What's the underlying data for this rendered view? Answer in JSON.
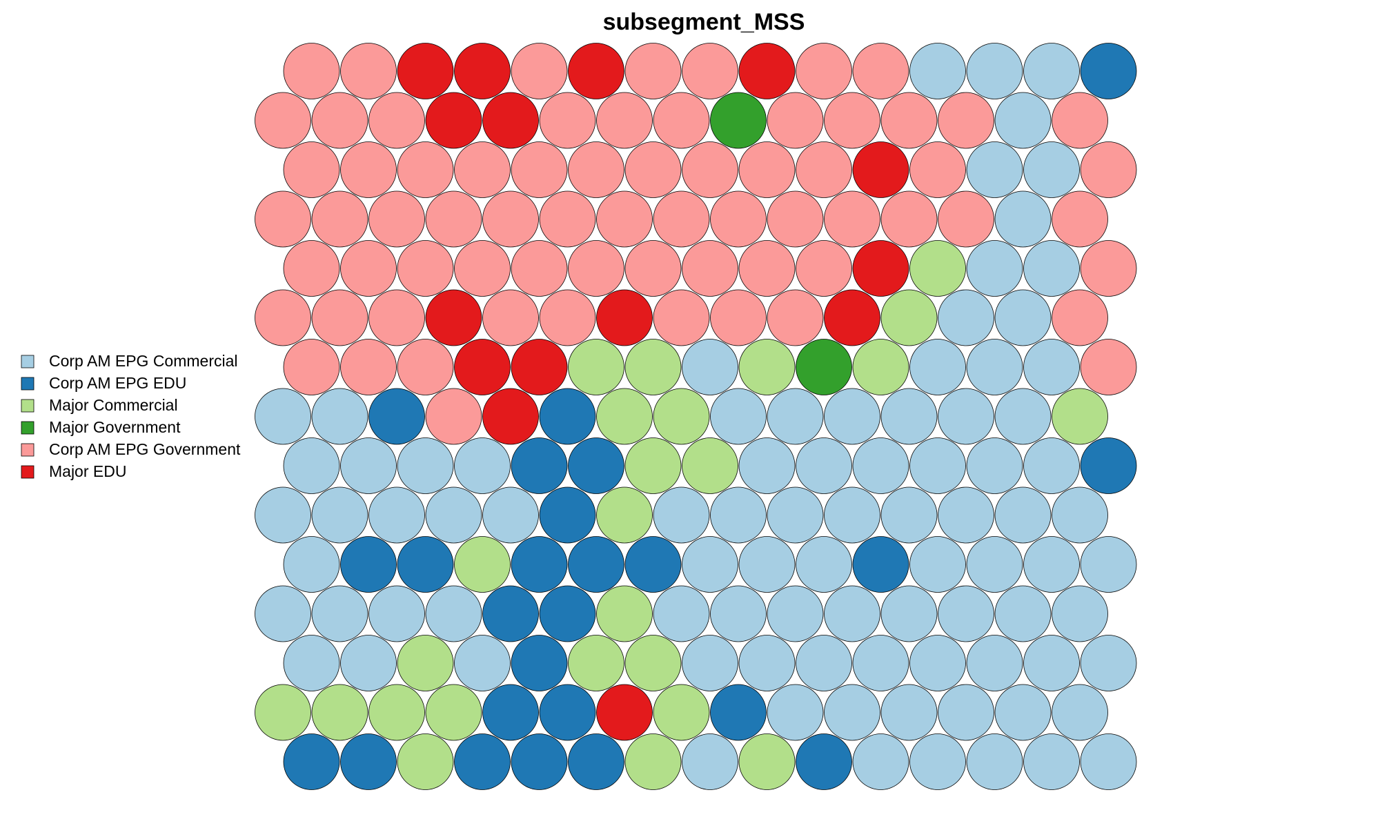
{
  "chart_data": {
    "type": "heatmap",
    "subtype": "som-hexagonal-map",
    "title": "subsegment_MSS",
    "grid": false,
    "legend_position": "left",
    "legend": [
      {
        "name": "Corp AM EPG Commercial",
        "color": "#A6CEE3"
      },
      {
        "name": "Corp AM EPG EDU",
        "color": "#1F78B4"
      },
      {
        "name": "Major Commercial",
        "color": "#B2DF8A"
      },
      {
        "name": "Major Government",
        "color": "#33A02C"
      },
      {
        "name": "Corp AM EPG Government",
        "color": "#FB9A99"
      },
      {
        "name": "Major EDU",
        "color": "#E31A1C"
      }
    ],
    "columns": 15,
    "rows_top_to_bottom": [
      [
        "Corp AM EPG Government",
        "Corp AM EPG Government",
        "Major EDU",
        "Major EDU",
        "Corp AM EPG Government",
        "Major EDU",
        "Corp AM EPG Government",
        "Corp AM EPG Government",
        "Major EDU",
        "Corp AM EPG Government",
        "Corp AM EPG Government",
        "Corp AM EPG Commercial",
        "Corp AM EPG Commercial",
        "Corp AM EPG Commercial",
        "Corp AM EPG EDU"
      ],
      [
        "Corp AM EPG Government",
        "Corp AM EPG Government",
        "Corp AM EPG Government",
        "Major EDU",
        "Major EDU",
        "Corp AM EPG Government",
        "Corp AM EPG Government",
        "Corp AM EPG Government",
        "Major Government",
        "Corp AM EPG Government",
        "Corp AM EPG Government",
        "Corp AM EPG Government",
        "Corp AM EPG Government",
        "Corp AM EPG Commercial",
        "Corp AM EPG Government"
      ],
      [
        "Corp AM EPG Government",
        "Corp AM EPG Government",
        "Corp AM EPG Government",
        "Corp AM EPG Government",
        "Corp AM EPG Government",
        "Corp AM EPG Government",
        "Corp AM EPG Government",
        "Corp AM EPG Government",
        "Corp AM EPG Government",
        "Corp AM EPG Government",
        "Major EDU",
        "Corp AM EPG Government",
        "Corp AM EPG Commercial",
        "Corp AM EPG Commercial",
        "Corp AM EPG Government"
      ],
      [
        "Corp AM EPG Government",
        "Corp AM EPG Government",
        "Corp AM EPG Government",
        "Corp AM EPG Government",
        "Corp AM EPG Government",
        "Corp AM EPG Government",
        "Corp AM EPG Government",
        "Corp AM EPG Government",
        "Corp AM EPG Government",
        "Corp AM EPG Government",
        "Corp AM EPG Government",
        "Corp AM EPG Government",
        "Corp AM EPG Government",
        "Corp AM EPG Commercial",
        "Corp AM EPG Government"
      ],
      [
        "Corp AM EPG Government",
        "Corp AM EPG Government",
        "Corp AM EPG Government",
        "Corp AM EPG Government",
        "Corp AM EPG Government",
        "Corp AM EPG Government",
        "Corp AM EPG Government",
        "Corp AM EPG Government",
        "Corp AM EPG Government",
        "Corp AM EPG Government",
        "Major EDU",
        "Major Commercial",
        "Corp AM EPG Commercial",
        "Corp AM EPG Commercial",
        "Corp AM EPG Government"
      ],
      [
        "Corp AM EPG Government",
        "Corp AM EPG Government",
        "Corp AM EPG Government",
        "Major EDU",
        "Corp AM EPG Government",
        "Corp AM EPG Government",
        "Major EDU",
        "Corp AM EPG Government",
        "Corp AM EPG Government",
        "Corp AM EPG Government",
        "Major EDU",
        "Major Commercial",
        "Corp AM EPG Commercial",
        "Corp AM EPG Commercial",
        "Corp AM EPG Government"
      ],
      [
        "Corp AM EPG Government",
        "Corp AM EPG Government",
        "Corp AM EPG Government",
        "Major EDU",
        "Major EDU",
        "Major Commercial",
        "Major Commercial",
        "Corp AM EPG Commercial",
        "Major Commercial",
        "Major Government",
        "Major Commercial",
        "Corp AM EPG Commercial",
        "Corp AM EPG Commercial",
        "Corp AM EPG Commercial",
        "Corp AM EPG Government"
      ],
      [
        "Corp AM EPG Commercial",
        "Corp AM EPG Commercial",
        "Corp AM EPG EDU",
        "Corp AM EPG Government",
        "Major EDU",
        "Corp AM EPG EDU",
        "Major Commercial",
        "Major Commercial",
        "Corp AM EPG Commercial",
        "Corp AM EPG Commercial",
        "Corp AM EPG Commercial",
        "Corp AM EPG Commercial",
        "Corp AM EPG Commercial",
        "Corp AM EPG Commercial",
        "Major Commercial"
      ],
      [
        "Corp AM EPG Commercial",
        "Corp AM EPG Commercial",
        "Corp AM EPG Commercial",
        "Corp AM EPG Commercial",
        "Corp AM EPG EDU",
        "Corp AM EPG EDU",
        "Major Commercial",
        "Major Commercial",
        "Corp AM EPG Commercial",
        "Corp AM EPG Commercial",
        "Corp AM EPG Commercial",
        "Corp AM EPG Commercial",
        "Corp AM EPG Commercial",
        "Corp AM EPG Commercial",
        "Corp AM EPG EDU"
      ],
      [
        "Corp AM EPG Commercial",
        "Corp AM EPG Commercial",
        "Corp AM EPG Commercial",
        "Corp AM EPG Commercial",
        "Corp AM EPG Commercial",
        "Corp AM EPG EDU",
        "Major Commercial",
        "Corp AM EPG Commercial",
        "Corp AM EPG Commercial",
        "Corp AM EPG Commercial",
        "Corp AM EPG Commercial",
        "Corp AM EPG Commercial",
        "Corp AM EPG Commercial",
        "Corp AM EPG Commercial",
        "Corp AM EPG Commercial"
      ],
      [
        "Corp AM EPG Commercial",
        "Corp AM EPG EDU",
        "Corp AM EPG EDU",
        "Major Commercial",
        "Corp AM EPG EDU",
        "Corp AM EPG EDU",
        "Corp AM EPG EDU",
        "Corp AM EPG Commercial",
        "Corp AM EPG Commercial",
        "Corp AM EPG Commercial",
        "Corp AM EPG EDU",
        "Corp AM EPG Commercial",
        "Corp AM EPG Commercial",
        "Corp AM EPG Commercial",
        "Corp AM EPG Commercial"
      ],
      [
        "Corp AM EPG Commercial",
        "Corp AM EPG Commercial",
        "Corp AM EPG Commercial",
        "Corp AM EPG Commercial",
        "Corp AM EPG EDU",
        "Corp AM EPG EDU",
        "Major Commercial",
        "Corp AM EPG Commercial",
        "Corp AM EPG Commercial",
        "Corp AM EPG Commercial",
        "Corp AM EPG Commercial",
        "Corp AM EPG Commercial",
        "Corp AM EPG Commercial",
        "Corp AM EPG Commercial",
        "Corp AM EPG Commercial"
      ],
      [
        "Corp AM EPG Commercial",
        "Corp AM EPG Commercial",
        "Major Commercial",
        "Corp AM EPG Commercial",
        "Corp AM EPG EDU",
        "Major Commercial",
        "Major Commercial",
        "Corp AM EPG Commercial",
        "Corp AM EPG Commercial",
        "Corp AM EPG Commercial",
        "Corp AM EPG Commercial",
        "Corp AM EPG Commercial",
        "Corp AM EPG Commercial",
        "Corp AM EPG Commercial",
        "Corp AM EPG Commercial"
      ],
      [
        "Major Commercial",
        "Major Commercial",
        "Major Commercial",
        "Major Commercial",
        "Corp AM EPG EDU",
        "Corp AM EPG EDU",
        "Major EDU",
        "Major Commercial",
        "Corp AM EPG EDU",
        "Corp AM EPG Commercial",
        "Corp AM EPG Commercial",
        "Corp AM EPG Commercial",
        "Corp AM EPG Commercial",
        "Corp AM EPG Commercial",
        "Corp AM EPG Commercial"
      ],
      [
        "Corp AM EPG EDU",
        "Corp AM EPG EDU",
        "Major Commercial",
        "Corp AM EPG EDU",
        "Corp AM EPG EDU",
        "Corp AM EPG EDU",
        "Major Commercial",
        "Corp AM EPG Commercial",
        "Major Commercial",
        "Corp AM EPG EDU",
        "Corp AM EPG Commercial",
        "Corp AM EPG Commercial",
        "Corp AM EPG Commercial",
        "Corp AM EPG Commercial",
        "Corp AM EPG Commercial"
      ]
    ]
  }
}
